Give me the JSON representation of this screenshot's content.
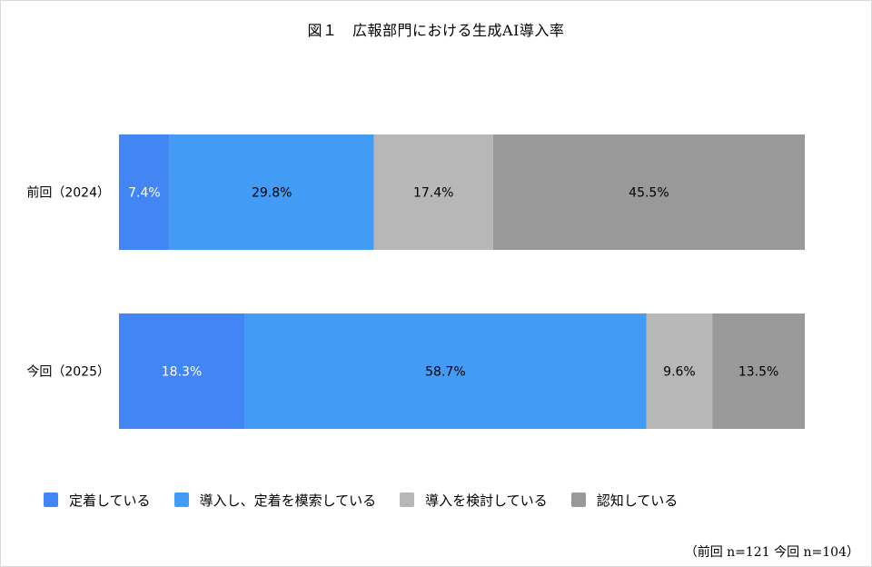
{
  "chart_data": {
    "type": "bar",
    "orientation": "horizontal",
    "stacked": true,
    "title": "図１　広報部門における生成AI導入率",
    "categories": [
      "前回（2024）",
      "今回（2025）"
    ],
    "series": [
      {
        "name": "定着している",
        "values": [
          7.4,
          18.3
        ],
        "labels": [
          "7.4%",
          "18.3%"
        ],
        "color": "#4286f5",
        "label_color": "#ffffff"
      },
      {
        "name": "導入し、定着を模索している",
        "values": [
          29.8,
          58.7
        ],
        "labels": [
          "29.8%",
          "58.7%"
        ],
        "color": "#429bf5",
        "label_color": "#000000"
      },
      {
        "name": "導入を検討している",
        "values": [
          17.4,
          9.6
        ],
        "labels": [
          "17.4%",
          "9.6%"
        ],
        "color": "#b7b7b7",
        "label_color": "#000000"
      },
      {
        "name": "認知している",
        "values": [
          45.5,
          13.5
        ],
        "labels": [
          "45.5%",
          "13.5%"
        ],
        "color": "#999999",
        "label_color": "#000000"
      }
    ],
    "legend_position": "bottom-left",
    "note": "（前回 n=121 今回 n=104）",
    "grid": false
  }
}
